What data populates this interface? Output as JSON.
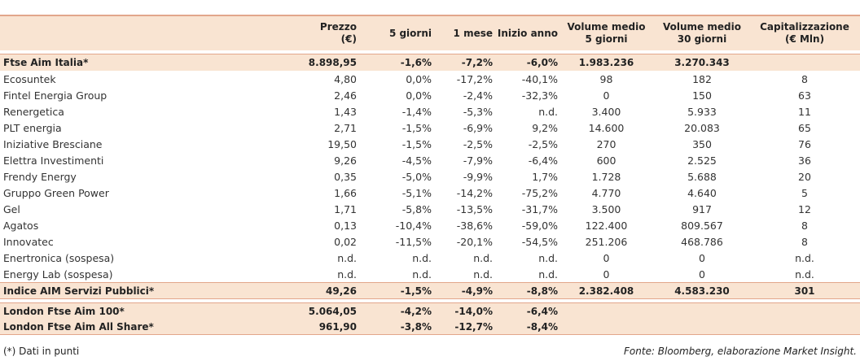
{
  "table": {
    "headers": {
      "prezzo_l1": "Prezzo",
      "prezzo_l2": "(€)",
      "five_days": "5 giorni",
      "one_month": "1 mese",
      "ytd": "Inizio anno",
      "vol5_l1": "Volume medio",
      "vol5_l2": "5 giorni",
      "vol30_l1": "Volume medio",
      "vol30_l2": "30 giorni",
      "cap_l1": "Capitalizzazione",
      "cap_l2": "(€ Mln)"
    },
    "main_index": [
      "Ftse Aim Italia*",
      "8.898,95",
      "-1,6%",
      "-7,2%",
      "-6,0%",
      "1.983.236",
      "3.270.343",
      ""
    ],
    "rows": [
      [
        "Ecosuntek",
        "4,80",
        "0,0%",
        "-17,2%",
        "-40,1%",
        "98",
        "182",
        "8"
      ],
      [
        "Fintel Energia Group",
        "2,46",
        "0,0%",
        "-2,4%",
        "-32,3%",
        "0",
        "150",
        "63"
      ],
      [
        "Renergetica",
        "1,43",
        "-1,4%",
        "-5,3%",
        "n.d.",
        "3.400",
        "5.933",
        "11"
      ],
      [
        "PLT energia",
        "2,71",
        "-1,5%",
        "-6,9%",
        "9,2%",
        "14.600",
        "20.083",
        "65"
      ],
      [
        "Iniziative Bresciane",
        "19,50",
        "-1,5%",
        "-2,5%",
        "-2,5%",
        "270",
        "350",
        "76"
      ],
      [
        "Elettra Investimenti",
        "9,26",
        "-4,5%",
        "-7,9%",
        "-6,4%",
        "600",
        "2.525",
        "36"
      ],
      [
        "Frendy Energy",
        "0,35",
        "-5,0%",
        "-9,9%",
        "1,7%",
        "1.728",
        "5.688",
        "20"
      ],
      [
        "Gruppo Green Power",
        "1,66",
        "-5,1%",
        "-14,2%",
        "-75,2%",
        "4.770",
        "4.640",
        "5"
      ],
      [
        "Gel",
        "1,71",
        "-5,8%",
        "-13,5%",
        "-31,7%",
        "3.500",
        "917",
        "12"
      ],
      [
        "Agatos",
        "0,13",
        "-10,4%",
        "-38,6%",
        "-59,0%",
        "122.400",
        "809.567",
        "8"
      ],
      [
        "Innovatec",
        "0,02",
        "-11,5%",
        "-20,1%",
        "-54,5%",
        "251.206",
        "468.786",
        "8"
      ],
      [
        "Enertronica (sospesa)",
        "n.d.",
        "n.d.",
        "n.d.",
        "n.d.",
        "0",
        "0",
        "n.d."
      ],
      [
        "Energy Lab (sospesa)",
        "n.d.",
        "n.d.",
        "n.d.",
        "n.d.",
        "0",
        "0",
        "n.d."
      ]
    ],
    "total": [
      "Indice AIM Servizi Pubblici*",
      "49,26",
      "-1,5%",
      "-4,9%",
      "-8,8%",
      "2.382.408",
      "4.583.230",
      "301"
    ],
    "london": [
      [
        "London Ftse Aim 100*",
        "5.064,05",
        "-4,2%",
        "-14,0%",
        "-6,4%",
        "",
        "",
        ""
      ],
      [
        "London Ftse Aim All Share*",
        "961,90",
        "-3,8%",
        "-12,7%",
        "-8,4%",
        "",
        "",
        ""
      ]
    ]
  },
  "footer": {
    "note": "(*) Dati in punti",
    "source": "Fonte: Bloomberg, elaborazione Market Insight."
  }
}
